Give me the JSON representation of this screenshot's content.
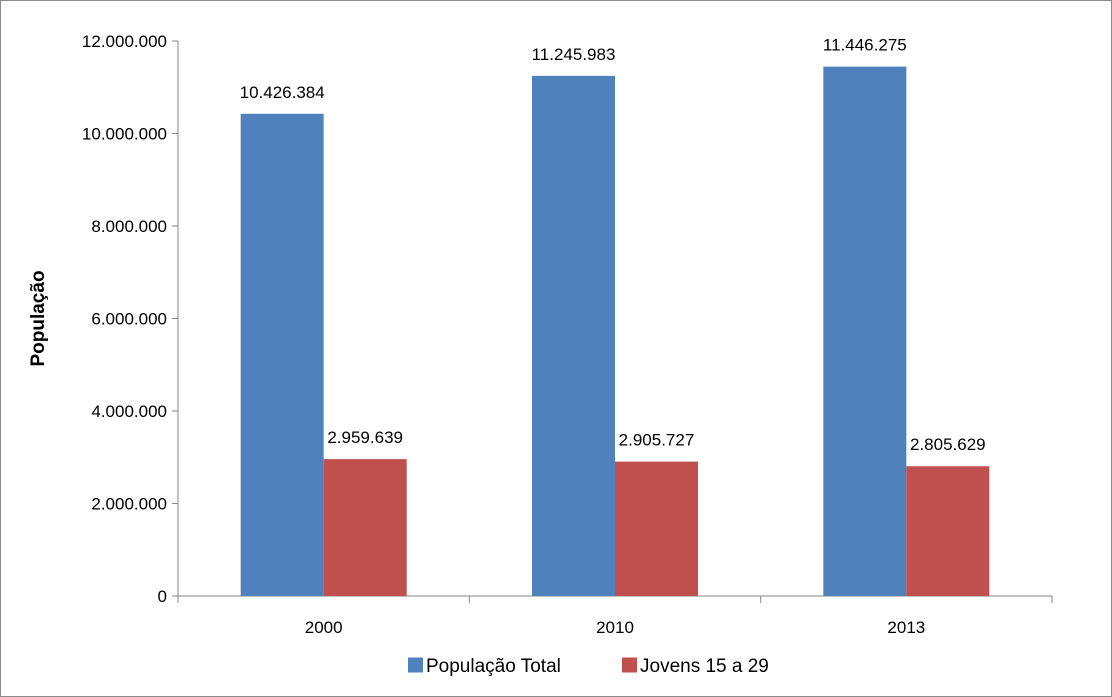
{
  "chart_data": {
    "type": "bar",
    "title": "",
    "xlabel": "",
    "ylabel": "População",
    "categories": [
      "2000",
      "2010",
      "2013"
    ],
    "series": [
      {
        "name": "População Total",
        "color": "#4f81bd",
        "values": [
          10426384,
          11245983,
          11446275
        ],
        "labels": [
          "10.426.384",
          "11.245.983",
          "11.446.275"
        ]
      },
      {
        "name": "Jovens 15 a 29",
        "color": "#c0504d",
        "values": [
          2959639,
          2905727,
          2805629
        ],
        "labels": [
          "2.959.639",
          "2.905.727",
          "2.805.629"
        ]
      }
    ],
    "ylim": [
      0,
      12000000
    ],
    "yticks": [
      0,
      2000000,
      4000000,
      6000000,
      8000000,
      10000000,
      12000000
    ],
    "ytick_labels": [
      "0",
      "2.000.000",
      "4.000.000",
      "6.000.000",
      "8.000.000",
      "10.000.000",
      "12.000.000"
    ],
    "grid": false,
    "legend_position": "bottom"
  }
}
